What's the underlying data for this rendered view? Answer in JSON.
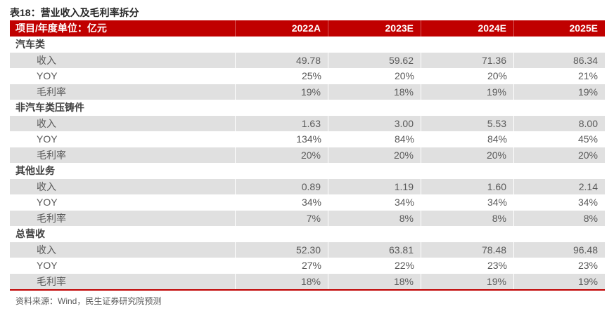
{
  "chart_data": {
    "type": "table",
    "title": "表18：营业收入及毛利率拆分",
    "source": "资料来源：Wind，民生证券研究院预测",
    "header": {
      "label": "项目/年度单位：亿元",
      "years": [
        "2022A",
        "2023E",
        "2024E",
        "2025E"
      ]
    },
    "sections": [
      {
        "name": "汽车类",
        "rows": [
          {
            "label": "收入",
            "values": [
              "49.78",
              "59.62",
              "71.36",
              "86.34"
            ]
          },
          {
            "label": "YOY",
            "values": [
              "25%",
              "20%",
              "20%",
              "21%"
            ]
          },
          {
            "label": "毛利率",
            "values": [
              "19%",
              "18%",
              "19%",
              "19%"
            ]
          }
        ]
      },
      {
        "name": "非汽车类压铸件",
        "rows": [
          {
            "label": "收入",
            "values": [
              "1.63",
              "3.00",
              "5.53",
              "8.00"
            ]
          },
          {
            "label": "YOY",
            "values": [
              "134%",
              "84%",
              "84%",
              "45%"
            ]
          },
          {
            "label": "毛利率",
            "values": [
              "20%",
              "20%",
              "20%",
              "20%"
            ]
          }
        ]
      },
      {
        "name": "其他业务",
        "rows": [
          {
            "label": "收入",
            "values": [
              "0.89",
              "1.19",
              "1.60",
              "2.14"
            ]
          },
          {
            "label": "YOY",
            "values": [
              "34%",
              "34%",
              "34%",
              "34%"
            ]
          },
          {
            "label": "毛利率",
            "values": [
              "7%",
              "8%",
              "8%",
              "8%"
            ]
          }
        ]
      },
      {
        "name": "总营收",
        "rows": [
          {
            "label": "收入",
            "values": [
              "52.30",
              "63.81",
              "78.48",
              "96.48"
            ]
          },
          {
            "label": "YOY",
            "values": [
              "27%",
              "22%",
              "23%",
              "23%"
            ]
          },
          {
            "label": "毛利率",
            "values": [
              "18%",
              "18%",
              "19%",
              "19%"
            ]
          }
        ]
      }
    ]
  },
  "colors": {
    "header_bg": "#C00000",
    "header_text": "#FFFFFF",
    "row_shade": "#E0E0E0",
    "accent_line": "#C00000",
    "body_text": "#595959",
    "section_text": "#404040"
  }
}
